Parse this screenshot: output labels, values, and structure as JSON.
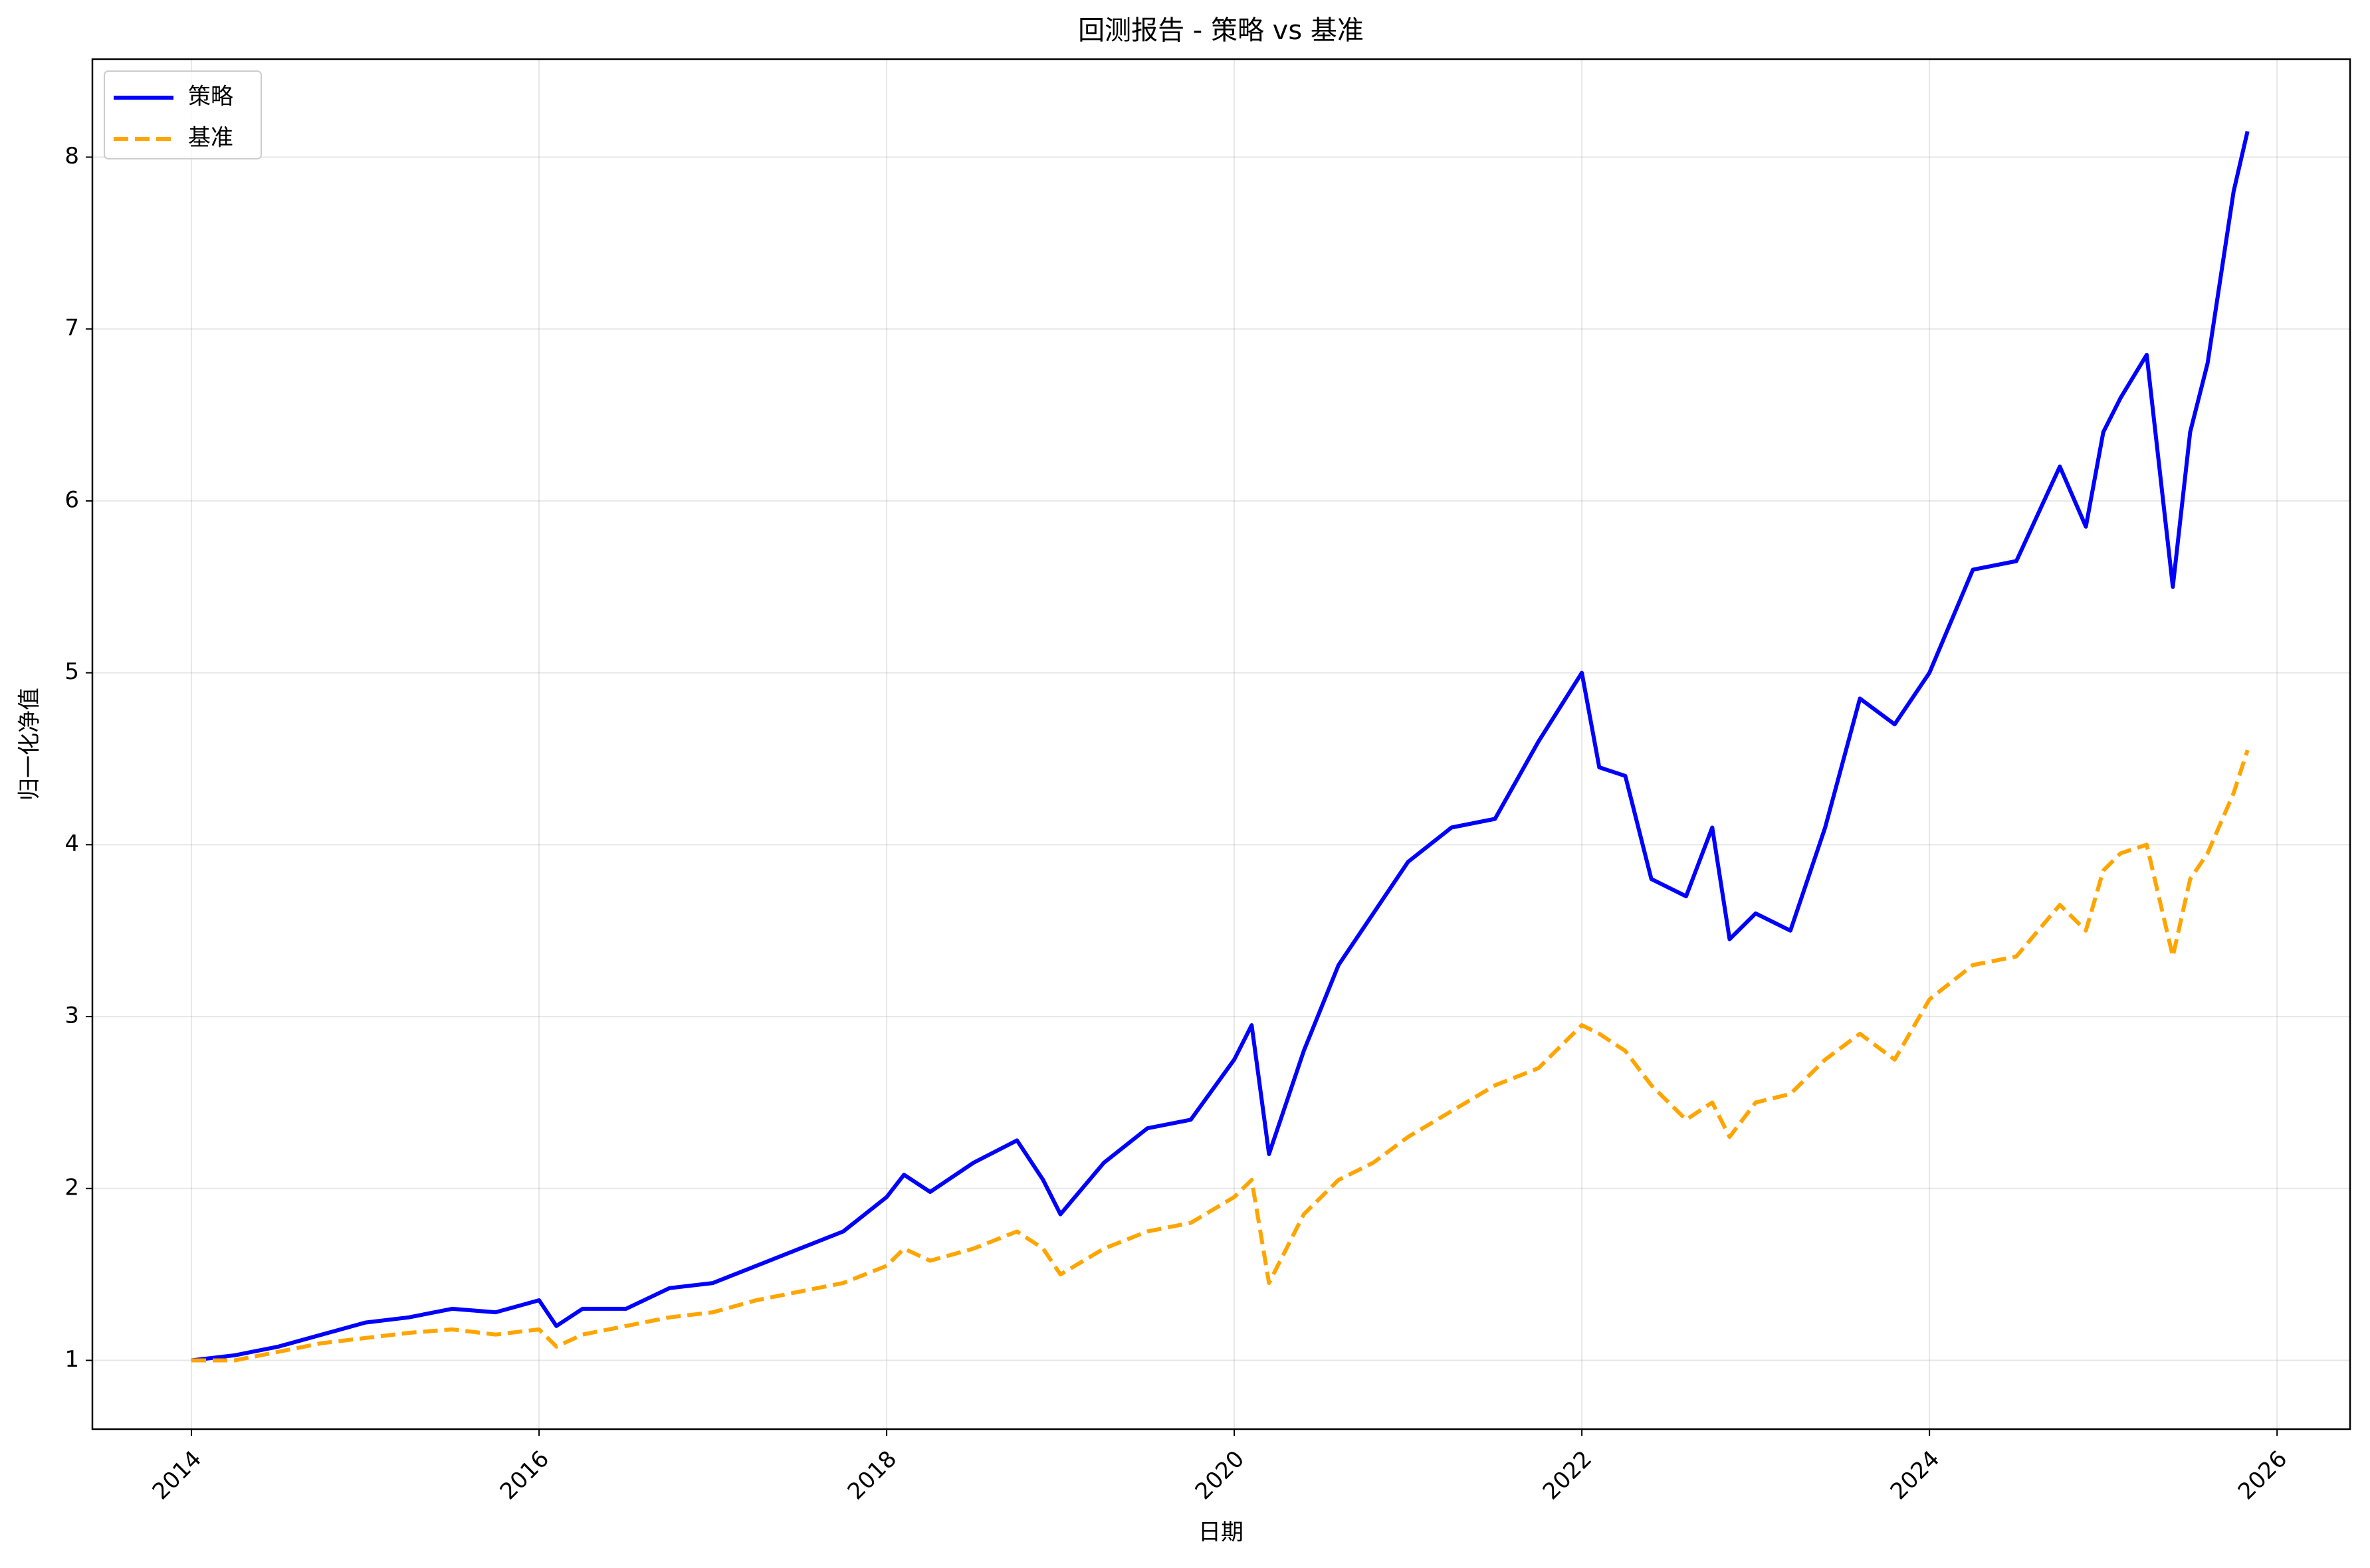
{
  "chart_data": {
    "type": "line",
    "title": "回测报告 - 策略 vs 基准",
    "x_label": "日期",
    "y_label": "归一化净值",
    "x": [
      2014,
      2014.25,
      2014.5,
      2014.75,
      2015,
      2015.25,
      2015.5,
      2015.75,
      2016,
      2016.1,
      2016.25,
      2016.5,
      2016.75,
      2017,
      2017.25,
      2017.5,
      2017.75,
      2018,
      2018.1,
      2018.25,
      2018.5,
      2018.75,
      2018.9,
      2019,
      2019.25,
      2019.5,
      2019.75,
      2020,
      2020.1,
      2020.2,
      2020.4,
      2020.6,
      2020.8,
      2021,
      2021.25,
      2021.5,
      2021.75,
      2022,
      2022.1,
      2022.25,
      2022.4,
      2022.6,
      2022.75,
      2022.85,
      2023,
      2023.2,
      2023.4,
      2023.6,
      2023.8,
      2024,
      2024.25,
      2024.5,
      2024.75,
      2024.9,
      2025,
      2025.1,
      2025.25,
      2025.4,
      2025.5,
      2025.6,
      2025.75,
      2025.83
    ],
    "series": [
      {
        "name": "策略",
        "color": "#0000ff",
        "linestyle": "solid",
        "values": [
          1.0,
          1.03,
          1.08,
          1.15,
          1.22,
          1.25,
          1.3,
          1.28,
          1.35,
          1.2,
          1.3,
          1.3,
          1.42,
          1.45,
          1.55,
          1.65,
          1.75,
          1.95,
          2.08,
          1.98,
          2.15,
          2.28,
          2.05,
          1.85,
          2.15,
          2.35,
          2.4,
          2.75,
          2.95,
          2.2,
          2.8,
          3.3,
          3.6,
          3.9,
          4.1,
          4.15,
          4.6,
          5.0,
          4.45,
          4.4,
          3.8,
          3.7,
          4.1,
          3.45,
          3.6,
          3.5,
          4.1,
          4.85,
          4.7,
          5.0,
          5.6,
          5.65,
          6.2,
          5.85,
          6.4,
          6.6,
          6.85,
          5.5,
          6.4,
          6.8,
          7.8,
          8.15
        ]
      },
      {
        "name": "基准",
        "color": "#ffa500",
        "linestyle": "dashed",
        "values": [
          1.0,
          1.0,
          1.05,
          1.1,
          1.13,
          1.16,
          1.18,
          1.15,
          1.18,
          1.08,
          1.15,
          1.2,
          1.25,
          1.28,
          1.35,
          1.4,
          1.45,
          1.55,
          1.65,
          1.58,
          1.65,
          1.75,
          1.65,
          1.5,
          1.65,
          1.75,
          1.8,
          1.95,
          2.05,
          1.45,
          1.85,
          2.05,
          2.15,
          2.3,
          2.45,
          2.6,
          2.7,
          2.95,
          2.9,
          2.8,
          2.6,
          2.4,
          2.5,
          2.3,
          2.5,
          2.55,
          2.75,
          2.9,
          2.75,
          3.1,
          3.3,
          3.35,
          3.65,
          3.5,
          3.85,
          3.95,
          4.0,
          3.35,
          3.8,
          3.95,
          4.3,
          4.55
        ]
      }
    ],
    "xlim": [
      2013.43,
      2026.42
    ],
    "xticks": [
      2014,
      2016,
      2018,
      2020,
      2022,
      2024,
      2026
    ],
    "ylim": [
      0.6,
      8.57
    ],
    "yticks": [
      1,
      2,
      3,
      4,
      5,
      6,
      7,
      8
    ],
    "grid": true,
    "legend": "upper-left"
  }
}
